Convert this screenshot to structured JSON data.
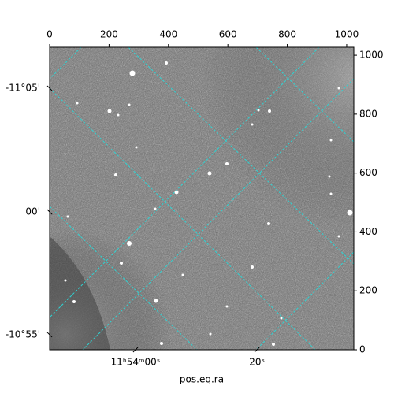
{
  "chart_data": {
    "type": "image",
    "xlabel": "pos.eq.ra",
    "xlim": [
      0,
      1024
    ],
    "ylim": [
      0,
      1027
    ],
    "xticks": [
      0,
      200,
      400,
      600,
      800,
      1000
    ],
    "yticks": [
      0,
      200,
      400,
      600,
      800,
      1000
    ],
    "ra_ticks": [
      {
        "value": 289,
        "label": "11ʰ54ᵐ00ˢ"
      },
      {
        "value": 698,
        "label": "20ˢ"
      }
    ],
    "dec_ticks": [
      {
        "value": 888,
        "label": "-11°05'"
      },
      {
        "value": 468,
        "label": "00'"
      },
      {
        "value": 51,
        "label": "-10°55'"
      }
    ],
    "grid": true,
    "grid_color": "#2fd3d3"
  }
}
